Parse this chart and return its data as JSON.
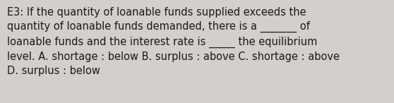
{
  "text": "E3: If the quantity of loanable funds supplied exceeds the\nquantity of loanable funds demanded, there is a _______ of\nloanable funds and the interest rate is _____ the equilibrium\nlevel. A. shortage : below B. surplus : above C. shortage : above\nD. surplus : below",
  "background_color": "#d3cfca",
  "text_color": "#1a1a1a",
  "font_size": 10.5,
  "fig_width": 5.58,
  "fig_height": 1.46,
  "dpi": 100
}
